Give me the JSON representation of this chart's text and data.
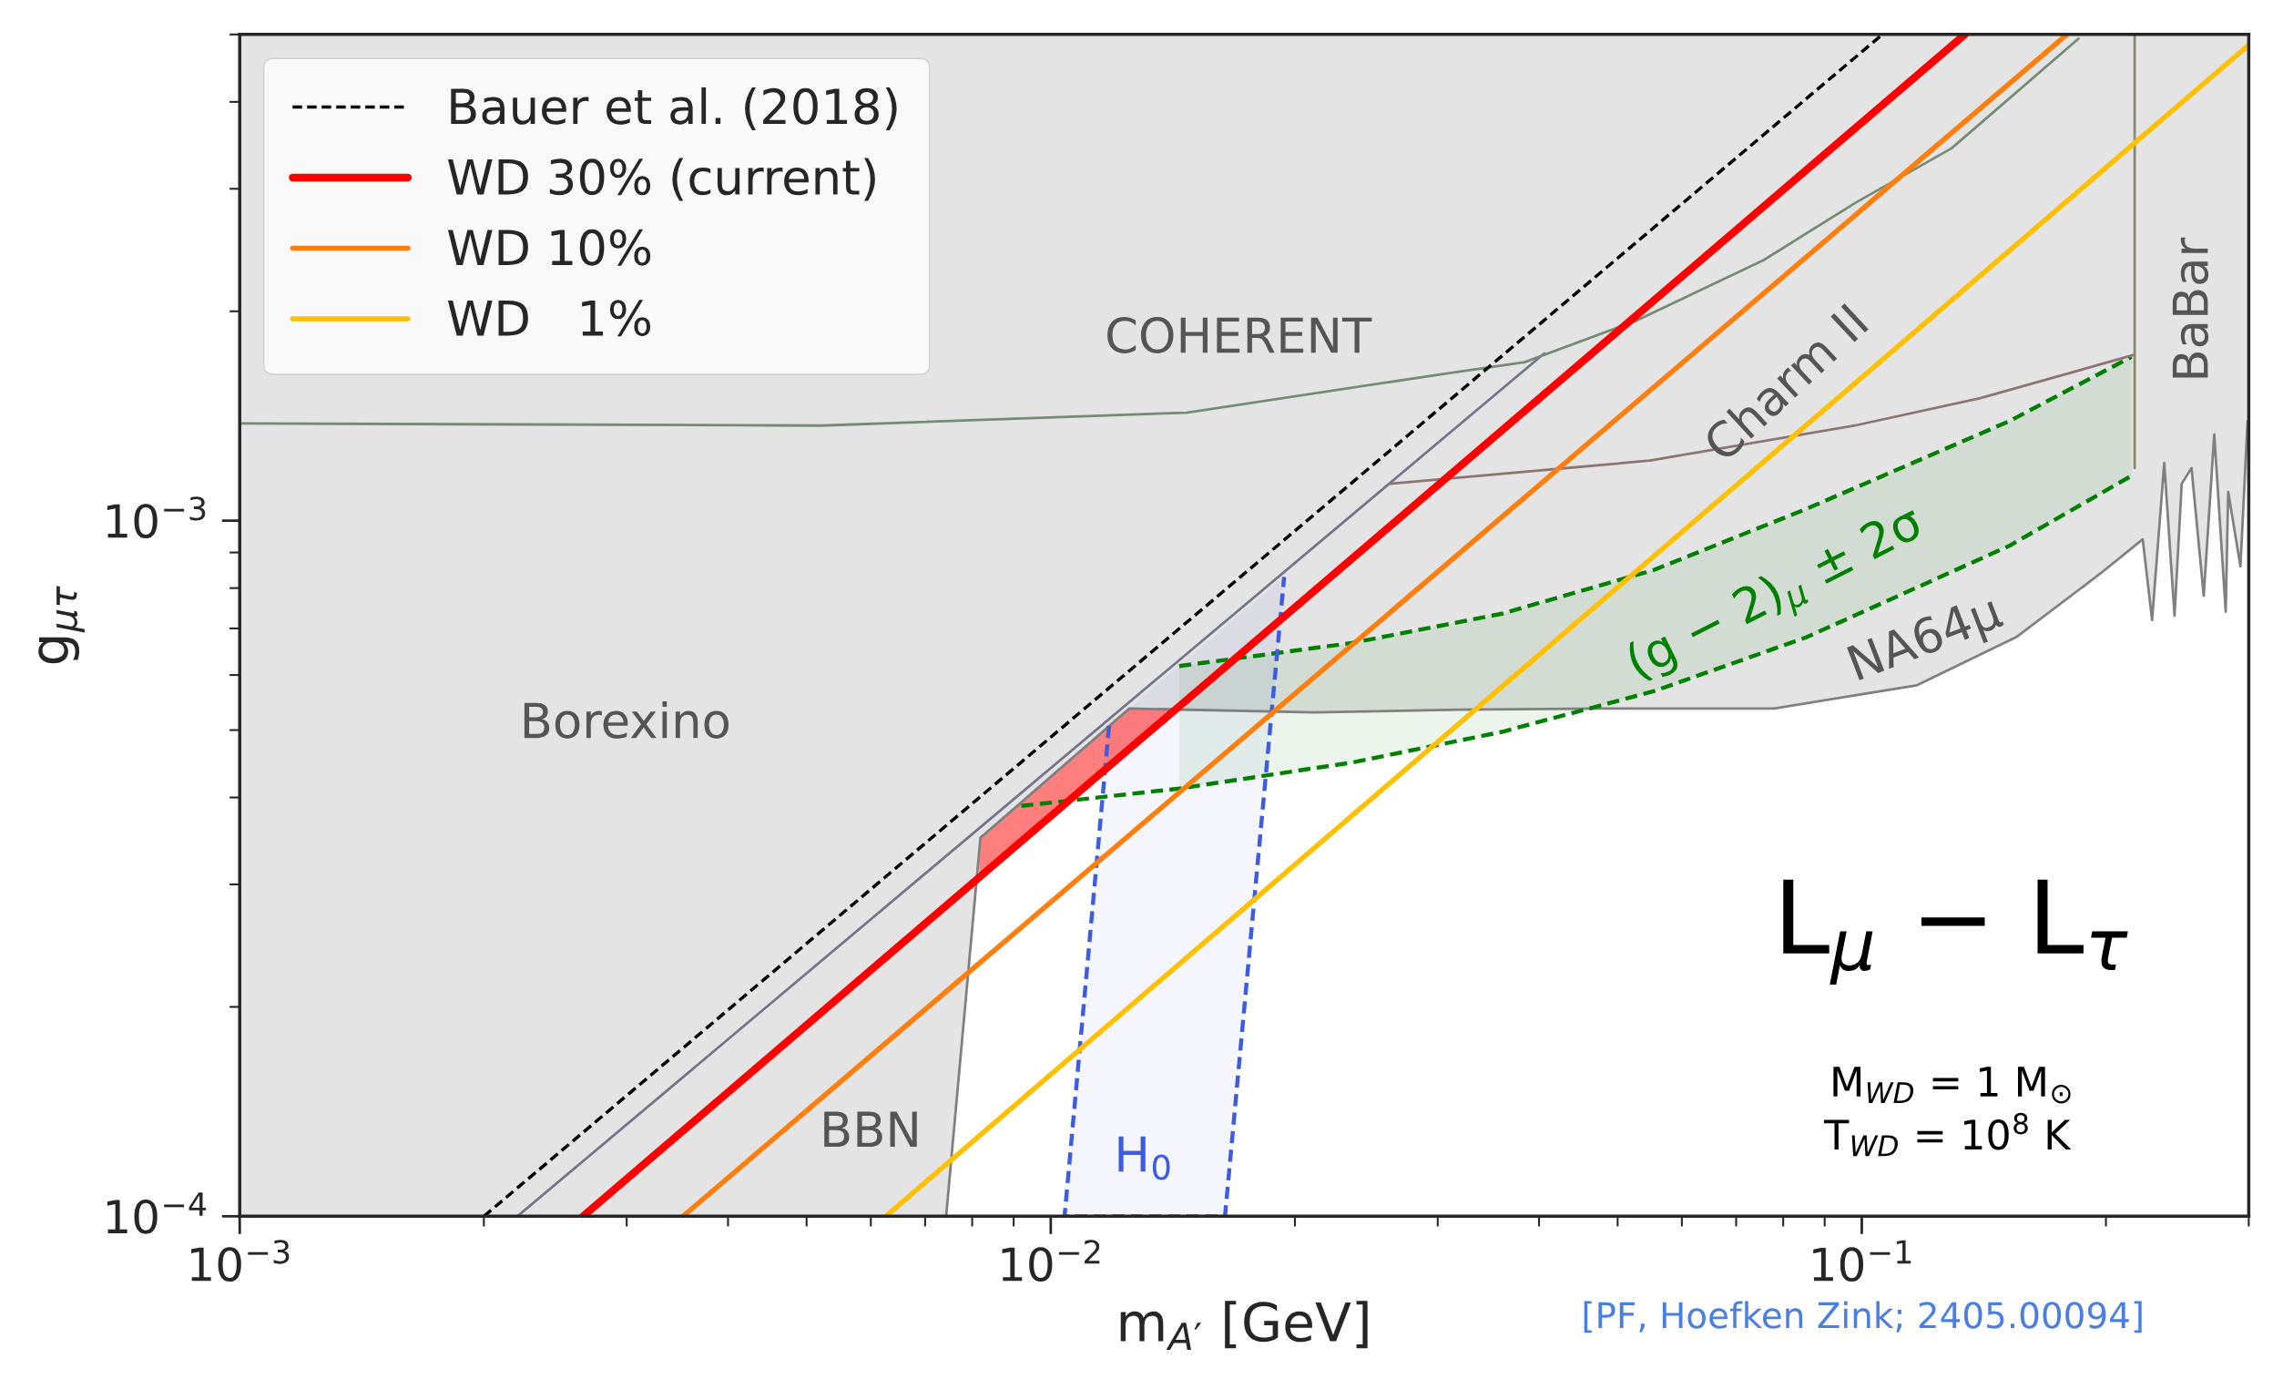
{
  "chart_data": {
    "type": "line",
    "xlabel": "m$_{A′}$ [GeV]",
    "ylabel": "g$_{μτ}$",
    "log": "xy",
    "xlim": [
      0.001,
      0.3
    ],
    "ylim": [
      0.0001,
      0.005
    ],
    "xticks": [
      {
        "value": 0.001,
        "label": "10$^{−3}$"
      },
      {
        "value": 0.01,
        "label": "10$^{−2}$"
      },
      {
        "value": 0.1,
        "label": "10$^{−1}$"
      }
    ],
    "yticks": [
      {
        "value": 0.0001,
        "label": "10$^{−4}$"
      },
      {
        "value": 0.001,
        "label": "10$^{−3}$"
      }
    ],
    "grid": false,
    "legend": "top left",
    "series": [
      {
        "type": "area",
        "color": "#ffffff",
        "line_style": "solid",
        "x": [
          0.001,
          0.00743,
          0.00819,
          0.0125,
          0.0211,
          0.032,
          0.0484,
          0.078,
          0.117,
          0.155,
          0.197,
          0.222,
          0.228,
          0.236,
          0.243,
          0.248,
          0.255,
          0.264,
          0.272,
          0.281,
          0.283,
          0.293,
          0.299,
          0.3
        ],
        "values": [
          0.0001,
          0.0001,
          0.00035,
          0.000537,
          0.00053,
          0.000535,
          0.000537,
          0.000537,
          0.00058,
          0.00068,
          0.00084,
          0.00094,
          0.00072,
          0.00121,
          0.00073,
          0.00113,
          0.00119,
          0.00078,
          0.00133,
          0.00074,
          0.0011,
          0.00086,
          0.00139,
          0.00133
        ]
      },
      {
        "color": "#008000",
        "line_style": "dashed",
        "x": [
          0.0092,
          0.0144,
          0.0235,
          0.036,
          0.0555,
          0.0855,
          0.152,
          0.215
        ],
        "values": [
          0.000389,
          0.000412,
          0.000449,
          0.000497,
          0.000569,
          0.00068,
          0.00092,
          0.00116
        ],
        "lower": [
          null,
          0.000412,
          0.000449,
          0.000497,
          0.000569,
          0.00068,
          0.00092,
          0.00116
        ],
        "upper": [
          null,
          0.000618,
          0.000667,
          0.000735,
          0.00085,
          0.00104,
          0.00139,
          0.00172
        ]
      },
      {
        "color": "#008000",
        "line_style": "dashed",
        "x": [
          0.0144,
          0.0235,
          0.036,
          0.0555,
          0.0855,
          0.152,
          0.215
        ],
        "values": [
          0.000618,
          0.000667,
          0.000735,
          0.00085,
          0.00104,
          0.00139,
          0.00172
        ]
      },
      {
        "type": "area",
        "color": "#3d5ce0",
        "line_style": "dashed",
        "x": [
          0.0118,
          0.0104,
          0.0164,
          0.0194
        ],
        "values": [
          0.000507,
          0.0001,
          0.0001,
          0.00083
        ]
      },
      {
        "color": "#74748c",
        "x": [
          0.0022,
          0.0406
        ],
        "values": [
          0.0001,
          0.00174
        ]
      },
      {
        "color": "#8c7474",
        "x": [
          0.0262,
          0.0548,
          0.098,
          0.14,
          0.216
        ],
        "values": [
          0.00113,
          0.00122,
          0.00137,
          0.0015,
          0.00173
        ]
      },
      {
        "color": "#748c74",
        "x": [
          0.001,
          0.00521,
          0.0147,
          0.031,
          0.0384,
          0.0528,
          0.0757,
          0.098,
          0.129,
          0.185
        ],
        "values": [
          0.00138,
          0.00137,
          0.00143,
          0.00163,
          0.00169,
          0.00194,
          0.00237,
          0.00286,
          0.00343,
          0.00493
        ]
      },
      {
        "color": "#8a8a6a",
        "x": [
          0.217,
          0.217
        ],
        "values": [
          0.005,
          0.00119
        ]
      },
      {
        "name": "Bauer et al. (2018)",
        "color": "#000000",
        "line_style": "dashed",
        "x": [
          0.002,
          0.106
        ],
        "values": [
          0.0001,
          0.005
        ]
      },
      {
        "name": "WD 30% (current)",
        "color": "#ff0000",
        "x": [
          0.00265,
          0.00816,
          0.0125,
          0.0143,
          0.134
        ],
        "values": [
          0.0001,
          0.000307,
          0.00047,
          0.000537,
          0.005
        ],
        "lower": [
          null,
          0.000307,
          0.00047,
          0.000537,
          null
        ],
        "upper": [
          null,
          0.00035,
          0.000537,
          0.000537,
          null
        ]
      },
      {
        "name": "WD 10%",
        "color": "#ff7f0e",
        "x": [
          0.00352,
          0.179
        ],
        "values": [
          0.0001,
          0.005
        ]
      },
      {
        "name": "WD   1%",
        "color": "#ffc000",
        "x": [
          0.00626,
          0.3
        ],
        "values": [
          0.0001,
          0.00483
        ]
      }
    ],
    "annotations": [
      "COHERENT",
      "Charm II",
      "BaBar",
      "Borexino",
      "BBN",
      "NA64μ",
      "(g − 2)$_{μ}$ ± 2σ",
      "H$_{0}$",
      "L$_{μ}$ − L$_{τ}$",
      "M$_{WD}$ = 1 M$_{⊙}$",
      "T$_{WD}$ = 10$^{8}$ K",
      "[PF, Hoefken Zink; 2405.00094]"
    ]
  }
}
